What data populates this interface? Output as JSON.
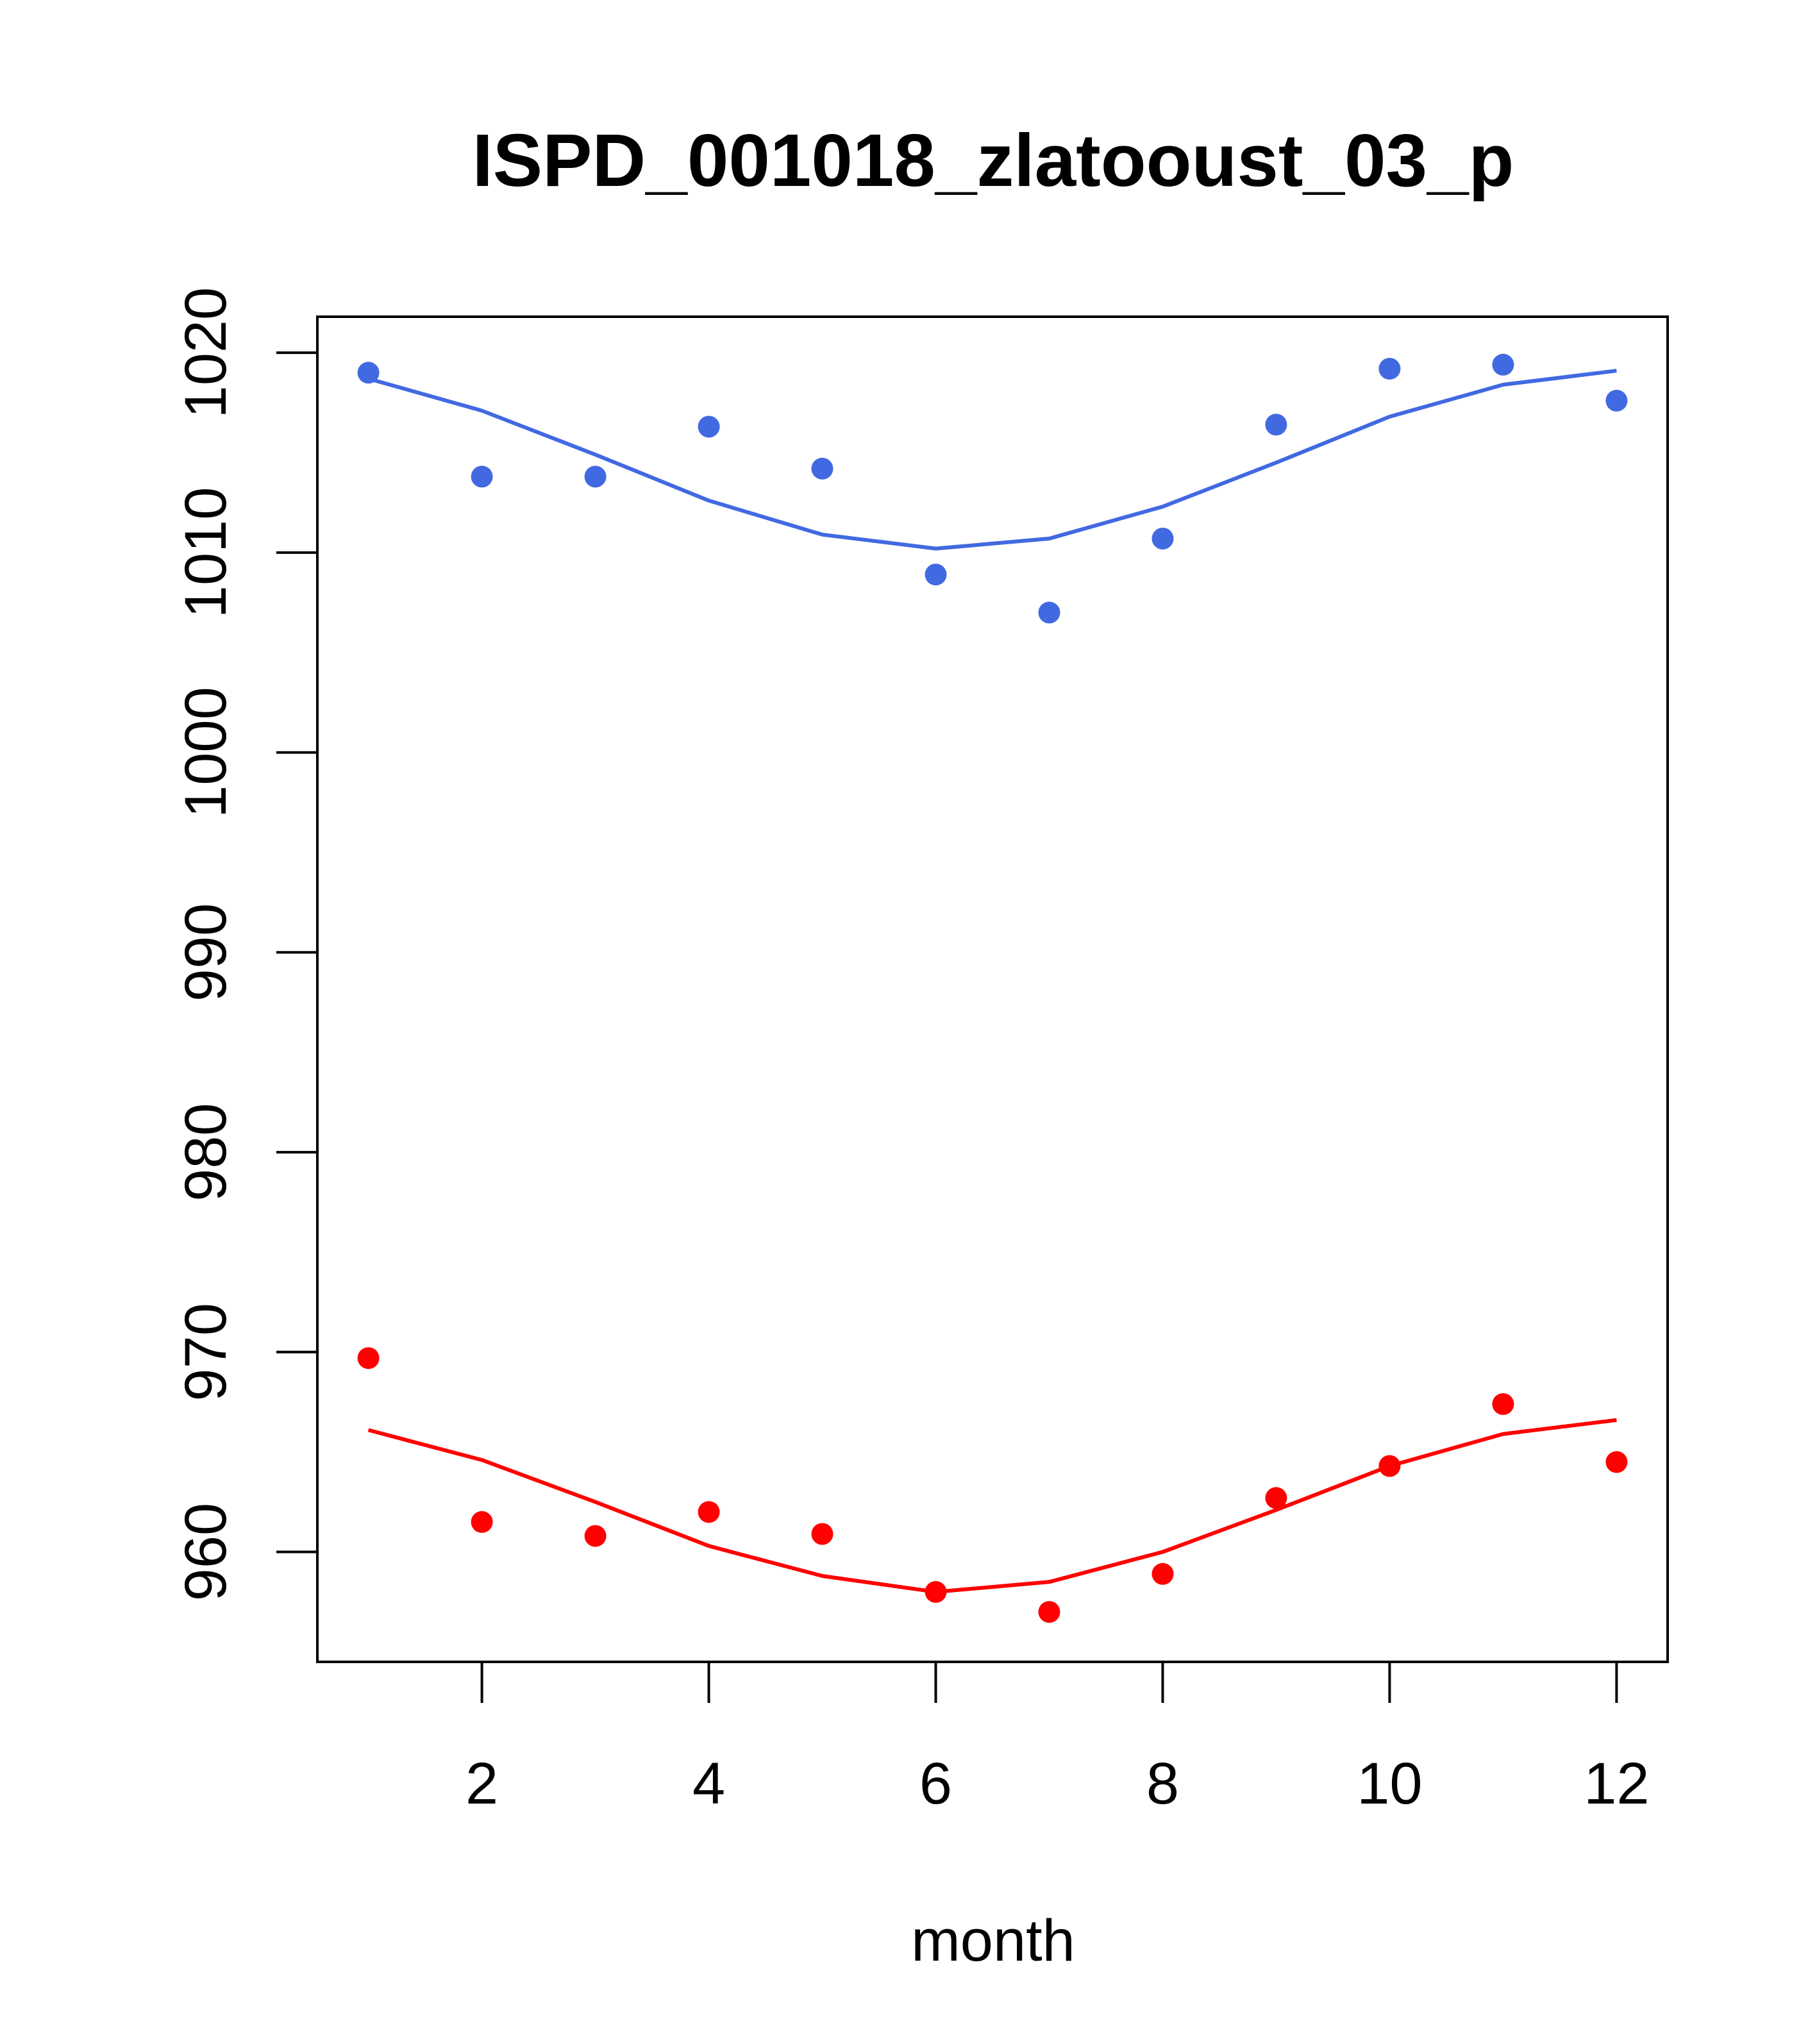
{
  "chart_data": {
    "type": "scatter",
    "title": "ISPD_001018_zlatooust_03_p",
    "xlabel": "month",
    "ylabel": "",
    "xlim": [
      0.55,
      12.45
    ],
    "ylim": [
      954.5,
      1021.8
    ],
    "x_ticks": [
      2,
      4,
      6,
      8,
      10,
      12
    ],
    "y_ticks": [
      960,
      970,
      980,
      990,
      1000,
      1010,
      1020
    ],
    "grid": false,
    "legend": "none",
    "series": [
      {
        "color": "#4169E1",
        "x": [
          1,
          2,
          3,
          4,
          5,
          6,
          7,
          8,
          9,
          10,
          11,
          12
        ],
        "points": [
          1019.0,
          1013.8,
          1013.8,
          1016.3,
          1014.2,
          1008.9,
          1007.0,
          1010.7,
          1016.4,
          1019.2,
          1019.4,
          1017.6
        ],
        "line": [
          1018.7,
          1017.1,
          1014.9,
          1012.6,
          1010.9,
          1010.2,
          1010.7,
          1012.3,
          1014.5,
          1016.8,
          1018.4,
          1019.1
        ]
      },
      {
        "color": "#FF0000",
        "x": [
          1,
          2,
          3,
          4,
          5,
          6,
          7,
          8,
          9,
          10,
          11,
          12
        ],
        "points": [
          969.7,
          961.5,
          960.8,
          962.0,
          960.9,
          958.0,
          957.0,
          958.9,
          962.7,
          964.3,
          967.4,
          964.5
        ],
        "line": [
          966.1,
          964.6,
          962.5,
          960.3,
          958.8,
          958.0,
          958.5,
          960.0,
          962.1,
          964.3,
          965.9,
          966.6
        ]
      }
    ]
  }
}
